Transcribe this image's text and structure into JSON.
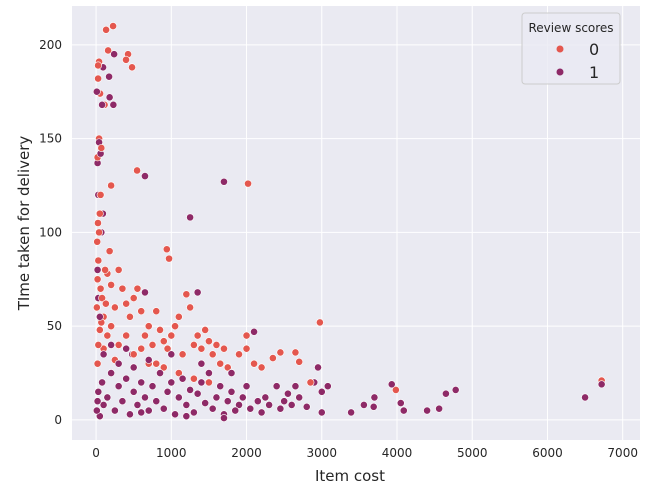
{
  "chart_data": {
    "type": "scatter",
    "title": "",
    "xlabel": "Item cost",
    "ylabel": "TIme taken for delivery",
    "xlim": [
      -320,
      7230
    ],
    "ylim": [
      -10.7,
      220.7
    ],
    "xticks": [
      0,
      1000,
      2000,
      3000,
      4000,
      5000,
      6000,
      7000
    ],
    "xtick_labels": [
      "0",
      "1000",
      "2000",
      "3000",
      "4000",
      "5000",
      "6000",
      "7000"
    ],
    "yticks": [
      0,
      50,
      100,
      150,
      200
    ],
    "ytick_labels": [
      "0",
      "50",
      "100",
      "150",
      "200"
    ],
    "grid": true,
    "legend": {
      "title": "Review scores",
      "placement": "top-right",
      "entries": [
        {
          "label": "0",
          "color": "#e4574e"
        },
        {
          "label": "1",
          "color": "#8e2a67"
        }
      ]
    },
    "series": [
      {
        "name": "0",
        "color": "#e4574e",
        "points": [
          [
            133,
            208
          ],
          [
            226,
            210
          ],
          [
            160,
            197
          ],
          [
            425,
            195
          ],
          [
            398,
            192
          ],
          [
            478,
            188
          ],
          [
            40,
            191
          ],
          [
            27,
            189
          ],
          [
            27,
            182
          ],
          [
            53,
            174
          ],
          [
            113,
            168
          ],
          [
            40,
            150
          ],
          [
            70,
            145
          ],
          [
            20,
            140
          ],
          [
            200,
            125
          ],
          [
            545,
            133
          ],
          [
            2020,
            126
          ],
          [
            940,
            91
          ],
          [
            970,
            86
          ],
          [
            2975,
            52
          ],
          [
            6720,
            21
          ],
          [
            3985,
            16
          ],
          [
            10,
            60
          ],
          [
            20,
            75
          ],
          [
            30,
            85
          ],
          [
            15,
            95
          ],
          [
            40,
            100
          ],
          [
            50,
            110
          ],
          [
            25,
            105
          ],
          [
            60,
            70
          ],
          [
            80,
            65
          ],
          [
            100,
            55
          ],
          [
            120,
            80
          ],
          [
            150,
            78
          ],
          [
            200,
            72
          ],
          [
            250,
            60
          ],
          [
            300,
            80
          ],
          [
            350,
            70
          ],
          [
            400,
            62
          ],
          [
            450,
            55
          ],
          [
            500,
            65
          ],
          [
            550,
            70
          ],
          [
            600,
            58
          ],
          [
            650,
            45
          ],
          [
            700,
            50
          ],
          [
            750,
            40
          ],
          [
            800,
            58
          ],
          [
            850,
            48
          ],
          [
            900,
            42
          ],
          [
            950,
            38
          ],
          [
            1000,
            45
          ],
          [
            1050,
            50
          ],
          [
            1100,
            55
          ],
          [
            1150,
            35
          ],
          [
            1200,
            67
          ],
          [
            1250,
            60
          ],
          [
            1300,
            40
          ],
          [
            1350,
            45
          ],
          [
            1400,
            38
          ],
          [
            1450,
            48
          ],
          [
            1500,
            42
          ],
          [
            1550,
            35
          ],
          [
            1600,
            40
          ],
          [
            1650,
            30
          ],
          [
            1700,
            38
          ],
          [
            1750,
            28
          ],
          [
            1800,
            25
          ],
          [
            1900,
            35
          ],
          [
            2000,
            45
          ],
          [
            2000,
            38
          ],
          [
            2100,
            30
          ],
          [
            2200,
            28
          ],
          [
            2350,
            33
          ],
          [
            2450,
            36
          ],
          [
            2650,
            36
          ],
          [
            2700,
            31
          ],
          [
            2850,
            20
          ],
          [
            150,
            45
          ],
          [
            200,
            50
          ],
          [
            300,
            40
          ],
          [
            400,
            45
          ],
          [
            500,
            35
          ],
          [
            600,
            38
          ],
          [
            700,
            30
          ],
          [
            100,
            38
          ],
          [
            50,
            48
          ],
          [
            250,
            32
          ],
          [
            800,
            30
          ],
          [
            900,
            28
          ],
          [
            1100,
            25
          ],
          [
            1300,
            22
          ],
          [
            1500,
            20
          ],
          [
            20,
            30
          ],
          [
            30,
            40
          ],
          [
            70,
            52
          ],
          [
            130,
            62
          ],
          [
            180,
            90
          ],
          [
            60,
            120
          ]
        ]
      },
      {
        "name": "1",
        "color": "#8e2a67",
        "points": [
          [
            240,
            195
          ],
          [
            93,
            188
          ],
          [
            173,
            183
          ],
          [
            13,
            175
          ],
          [
            80,
            168
          ],
          [
            650,
            130
          ],
          [
            1700,
            127
          ],
          [
            1250,
            108
          ],
          [
            6500,
            12
          ],
          [
            6720,
            19
          ],
          [
            4560,
            6
          ],
          [
            4650,
            14
          ],
          [
            4780,
            16
          ],
          [
            4400,
            5
          ],
          [
            3930,
            19
          ],
          [
            4050,
            9
          ],
          [
            4090,
            5
          ],
          [
            3690,
            7
          ],
          [
            3560,
            8
          ],
          [
            3390,
            4
          ],
          [
            3700,
            12
          ],
          [
            3000,
            15
          ],
          [
            3080,
            18
          ],
          [
            3000,
            4
          ],
          [
            10,
            5
          ],
          [
            20,
            10
          ],
          [
            30,
            15
          ],
          [
            50,
            2
          ],
          [
            80,
            20
          ],
          [
            100,
            8
          ],
          [
            150,
            12
          ],
          [
            200,
            25
          ],
          [
            250,
            5
          ],
          [
            300,
            18
          ],
          [
            350,
            10
          ],
          [
            400,
            22
          ],
          [
            450,
            3
          ],
          [
            500,
            15
          ],
          [
            550,
            8
          ],
          [
            600,
            20
          ],
          [
            650,
            12
          ],
          [
            700,
            5
          ],
          [
            750,
            18
          ],
          [
            800,
            10
          ],
          [
            850,
            25
          ],
          [
            900,
            6
          ],
          [
            950,
            15
          ],
          [
            1000,
            20
          ],
          [
            1050,
            3
          ],
          [
            1100,
            12
          ],
          [
            1150,
            22
          ],
          [
            1200,
            8
          ],
          [
            1250,
            16
          ],
          [
            1300,
            4
          ],
          [
            1350,
            14
          ],
          [
            1400,
            20
          ],
          [
            1450,
            9
          ],
          [
            1500,
            25
          ],
          [
            1550,
            6
          ],
          [
            1600,
            12
          ],
          [
            1650,
            18
          ],
          [
            1700,
            3
          ],
          [
            1750,
            10
          ],
          [
            1800,
            15
          ],
          [
            1850,
            5
          ],
          [
            1900,
            8
          ],
          [
            1950,
            12
          ],
          [
            2000,
            18
          ],
          [
            2100,
            47
          ],
          [
            2050,
            6
          ],
          [
            2150,
            10
          ],
          [
            2200,
            4
          ],
          [
            2250,
            12
          ],
          [
            2300,
            8
          ],
          [
            2400,
            18
          ],
          [
            2450,
            6
          ],
          [
            2500,
            10
          ],
          [
            2550,
            14
          ],
          [
            2600,
            8
          ],
          [
            2650,
            18
          ],
          [
            2700,
            12
          ],
          [
            2800,
            7
          ],
          [
            2900,
            20
          ],
          [
            2950,
            28
          ],
          [
            300,
            30
          ],
          [
            500,
            28
          ],
          [
            700,
            32
          ],
          [
            100,
            35
          ],
          [
            200,
            40
          ],
          [
            400,
            38
          ],
          [
            1000,
            35
          ],
          [
            1400,
            30
          ],
          [
            1800,
            25
          ],
          [
            50,
            55
          ],
          [
            30,
            65
          ],
          [
            20,
            80
          ],
          [
            70,
            100
          ],
          [
            90,
            110
          ],
          [
            30,
            120
          ],
          [
            20,
            137
          ],
          [
            60,
            142
          ],
          [
            40,
            148
          ],
          [
            10,
            175
          ],
          [
            180,
            172
          ],
          [
            230,
            168
          ],
          [
            1350,
            68
          ],
          [
            650,
            68
          ],
          [
            480,
            35
          ],
          [
            600,
            4
          ],
          [
            1200,
            2
          ],
          [
            1700,
            1
          ]
        ]
      }
    ]
  }
}
